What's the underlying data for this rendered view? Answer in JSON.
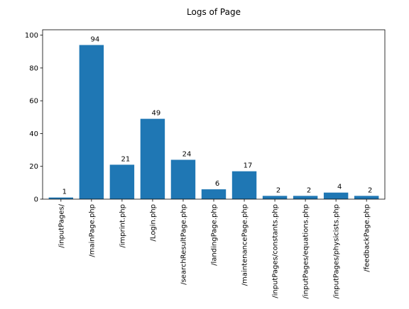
{
  "chart_data": {
    "type": "bar",
    "title": "Logs of Page",
    "xlabel": "",
    "ylabel": "",
    "categories": [
      "/inputPages/",
      "/mainPage.php",
      "/imprint.php",
      "/Login.php",
      "/searchResultPage.php",
      "/landingPage.php",
      "/maintenancePage.php",
      "/inputPages/constants.php",
      "/inputPages/equations.php",
      "/inputPages/physicists.php",
      "/feedbackPage.php"
    ],
    "values": [
      1,
      94,
      21,
      49,
      24,
      6,
      17,
      2,
      2,
      4,
      2
    ],
    "data_labels": [
      "1",
      "94",
      "21",
      "49",
      "24",
      "6",
      "17",
      "2",
      "2",
      "4",
      "2"
    ],
    "ylim": [
      0,
      103.3
    ],
    "yticks": [
      0,
      20,
      40,
      60,
      80,
      100
    ],
    "grid": false,
    "legend": "none",
    "bar_color": "#1f77b4"
  }
}
